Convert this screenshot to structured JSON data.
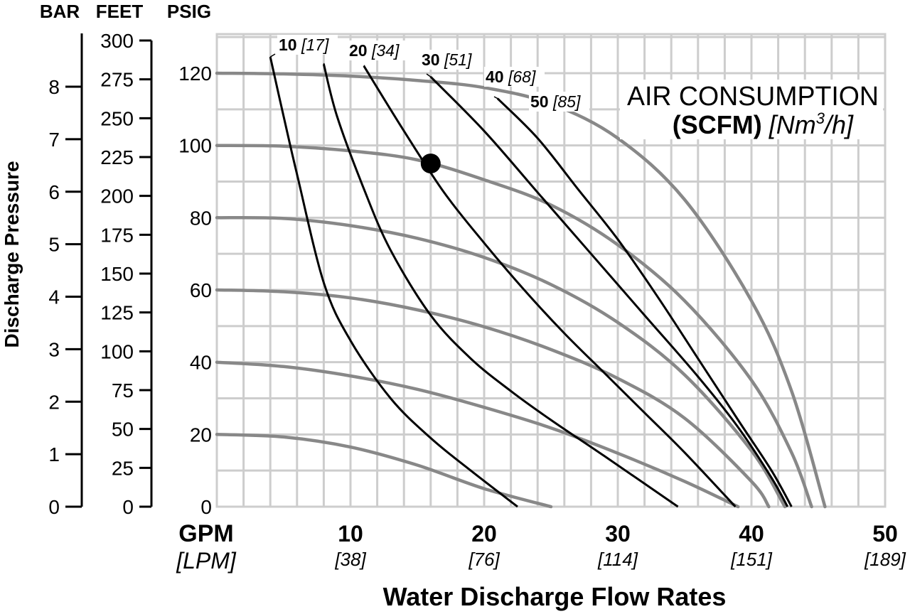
{
  "chart_data": {
    "type": "line",
    "header_bar": "BAR",
    "header_feet": "FEET",
    "header_psig": "PSIG",
    "title_line1": "AIR CONSUMPTION",
    "title_line2_bold": "(SCFM)",
    "title_line2_italic": "[Nm",
    "title_line2_sup": "3",
    "title_line2_end": "/h]",
    "ylabel": "Discharge Pressure",
    "xlabel": "Water Discharge Flow Rates",
    "x_unit_label": "GPM",
    "x_unit_sub": "[LPM]",
    "xlim": [
      0,
      50
    ],
    "ylim": [
      0,
      130
    ],
    "grid": true,
    "x_ticks": [
      10,
      20,
      30,
      40,
      50
    ],
    "x_ticks_lpm": [
      "[38]",
      "[76]",
      "[114]",
      "[151]",
      "[189]"
    ],
    "psig_ticks": [
      0,
      20,
      40,
      60,
      80,
      100,
      120
    ],
    "feet_ticks": [
      0,
      25,
      50,
      75,
      100,
      125,
      150,
      175,
      200,
      225,
      250,
      275,
      300
    ],
    "bar_ticks": [
      0,
      1,
      2,
      3,
      4,
      5,
      6,
      7,
      8
    ],
    "pressure_curves": [
      {
        "x": [
          0,
          5,
          10,
          15,
          20,
          25
        ],
        "y": [
          20,
          19.3,
          16.5,
          11.5,
          5,
          0
        ]
      },
      {
        "x": [
          0,
          5,
          10,
          15,
          20,
          25,
          30,
          35,
          39
        ],
        "y": [
          40,
          38.8,
          36.2,
          32.5,
          27.5,
          21.8,
          14.8,
          7,
          0
        ]
      },
      {
        "x": [
          0,
          5,
          10,
          15,
          20,
          25,
          30,
          35,
          40,
          41.3
        ],
        "y": [
          60,
          59.5,
          57.8,
          54.5,
          49.8,
          43.5,
          35.5,
          24.5,
          7,
          0
        ]
      },
      {
        "x": [
          0,
          5,
          10,
          15,
          20,
          25,
          30,
          35,
          40,
          42.5
        ],
        "y": [
          80,
          79.8,
          77.8,
          74.3,
          69,
          61.5,
          51,
          36.5,
          15.5,
          0
        ]
      },
      {
        "x": [
          0,
          5,
          10,
          15,
          20,
          25,
          30,
          35,
          40,
          43,
          44.5
        ],
        "y": [
          100,
          99.8,
          98.5,
          96,
          90.5,
          83.5,
          72.5,
          57,
          35,
          15,
          0
        ]
      },
      {
        "x": [
          0,
          5,
          10,
          15,
          20,
          25,
          30,
          35,
          40,
          43,
          45.5
        ],
        "y": [
          120,
          119.8,
          119.2,
          118,
          116,
          111.5,
          102,
          85,
          57,
          32,
          0
        ]
      }
    ],
    "air_curves": [
      {
        "label": "10",
        "label_nm": "[17]",
        "x": [
          4,
          5,
          6,
          8,
          10,
          13,
          16,
          19,
          22.5
        ],
        "y": [
          124.5,
          108,
          92,
          62,
          46,
          30,
          19,
          10,
          0
        ]
      },
      {
        "label": "20",
        "label_nm": "[34]",
        "x": [
          8,
          9,
          11,
          13,
          16,
          19,
          22,
          25,
          29,
          34.5
        ],
        "y": [
          122.5,
          108,
          88,
          71,
          53,
          41,
          32,
          24,
          14,
          0
        ]
      },
      {
        "label": "30",
        "label_nm": "[51]",
        "x": [
          11,
          14,
          17,
          20,
          23,
          26,
          29,
          32,
          35,
          38.8
        ],
        "y": [
          122,
          104,
          87,
          73,
          60,
          48,
          37,
          26,
          15,
          0
        ]
      },
      {
        "label": "40",
        "label_nm": "[68]",
        "x": [
          16,
          20,
          24,
          28,
          32,
          36,
          39,
          41.5,
          42.7
        ],
        "y": [
          119,
          104,
          87,
          70,
          53,
          36,
          22,
          8,
          0
        ]
      },
      {
        "label": "50",
        "label_nm": "[85]",
        "x": [
          21,
          24,
          27,
          30,
          33,
          36,
          39,
          41.5,
          43
        ],
        "y": [
          113,
          102,
          88,
          74,
          58,
          41,
          24,
          10,
          0
        ]
      }
    ],
    "marker": {
      "x": 16,
      "y": 95
    }
  }
}
